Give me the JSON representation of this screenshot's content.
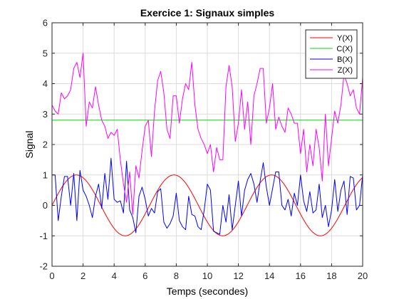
{
  "chart_data": {
    "type": "line",
    "title": "Exercice 1: Signaux simples",
    "xlabel": "Temps (secondes)",
    "ylabel": "Signal",
    "xlim": [
      0,
      20
    ],
    "ylim": [
      -2,
      6
    ],
    "xticks": [
      "0",
      "2",
      "4",
      "6",
      "8",
      "10",
      "12",
      "14",
      "16",
      "18",
      "20"
    ],
    "yticks": [
      "-2",
      "-1",
      "0",
      "1",
      "2",
      "3",
      "4",
      "5",
      "6"
    ],
    "grid": true,
    "legend_position": "top-right",
    "series": [
      {
        "name": "Y(X)",
        "color": "#ff0000",
        "function": "sine",
        "amplitude": 1,
        "angular_frequency": 1,
        "x_range": [
          0,
          20
        ]
      },
      {
        "name": "C(X)",
        "color": "#00dd00",
        "x": [
          0,
          20
        ],
        "y": [
          2.8,
          2.8
        ]
      },
      {
        "name": "B(X)",
        "color": "#0000ff",
        "x": [
          0,
          0.2,
          0.4,
          0.6,
          0.8,
          1.0,
          1.2,
          1.4,
          1.6,
          1.8,
          2.0,
          2.2,
          2.4,
          2.6,
          2.8,
          3.0,
          3.2,
          3.4,
          3.6,
          3.8,
          4.0,
          4.2,
          4.4,
          4.6,
          4.8,
          5.0,
          5.2,
          5.4,
          5.6,
          5.8,
          6.0,
          6.2,
          6.4,
          6.6,
          6.8,
          7.0,
          7.2,
          7.4,
          7.6,
          7.8,
          8.0,
          8.2,
          8.4,
          8.6,
          8.8,
          9.0,
          9.2,
          9.4,
          9.6,
          9.8,
          10.0,
          10.2,
          10.4,
          10.6,
          10.8,
          11.0,
          11.2,
          11.4,
          11.6,
          11.8,
          12.0,
          12.2,
          12.4,
          12.6,
          12.8,
          13.0,
          13.2,
          13.4,
          13.6,
          13.8,
          14.0,
          14.2,
          14.4,
          14.6,
          14.8,
          15.0,
          15.2,
          15.4,
          15.6,
          15.8,
          16.0,
          16.2,
          16.4,
          16.6,
          16.8,
          17.0,
          17.2,
          17.4,
          17.6,
          17.8,
          18.0,
          18.2,
          18.4,
          18.6,
          18.8,
          19.0,
          19.2,
          19.4,
          19.6,
          19.8,
          20.0
        ],
        "y": [
          1.0,
          1.0,
          -0.5,
          0.3,
          0.95,
          0.95,
          0.0,
          1.05,
          -0.5,
          1.15,
          0.5,
          0.3,
          0.0,
          -0.4,
          0.3,
          0.7,
          -0.1,
          1.05,
          0.2,
          1.55,
          0.2,
          0.1,
          0.15,
          -0.25,
          1.45,
          -0.15,
          -0.4,
          -0.9,
          0.3,
          0.6,
          0.2,
          -0.35,
          -0.1,
          -0.25,
          0.45,
          0.55,
          -0.55,
          -0.75,
          -0.6,
          -0.35,
          0.4,
          -0.5,
          -0.7,
          -0.8,
          0.3,
          -0.3,
          -0.35,
          -0.7,
          -0.8,
          -0.15,
          0.7,
          0.5,
          -0.85,
          -0.9,
          -0.95,
          0.0,
          -0.55,
          0.35,
          -0.8,
          0.0,
          0.8,
          -0.35,
          0.5,
          0.85,
          1.05,
          0.7,
          0.1,
          0.8,
          1.4,
          0.6,
          0.0,
          0.55,
          1.1,
          1.1,
          0.0,
          -0.15,
          0.2,
          -0.35,
          0.4,
          0.0,
          1.0,
          0.15,
          -0.2,
          0.45,
          -0.25,
          -0.15,
          0.7,
          -0.4,
          0.0,
          -0.7,
          -0.15,
          0.85,
          -0.2,
          0.5,
          0.8,
          -0.3,
          0.95,
          0.9,
          -0.15,
          0.0,
          1.0
        ]
      },
      {
        "name": "Z(X)",
        "color": "#ff00ff",
        "x": [
          0,
          0.2,
          0.4,
          0.6,
          0.8,
          1.0,
          1.2,
          1.4,
          1.6,
          1.8,
          2.0,
          2.2,
          2.4,
          2.6,
          2.8,
          3.0,
          3.2,
          3.4,
          3.6,
          3.8,
          4.0,
          4.2,
          4.4,
          4.6,
          4.8,
          5.0,
          5.2,
          5.4,
          5.6,
          5.8,
          6.0,
          6.2,
          6.4,
          6.6,
          6.8,
          7.0,
          7.2,
          7.4,
          7.6,
          7.8,
          8.0,
          8.2,
          8.4,
          8.6,
          8.8,
          9.0,
          9.2,
          9.4,
          9.6,
          9.8,
          10.0,
          10.2,
          10.4,
          10.6,
          10.8,
          11.0,
          11.2,
          11.4,
          11.6,
          11.8,
          12.0,
          12.2,
          12.4,
          12.6,
          12.8,
          13.0,
          13.2,
          13.4,
          13.6,
          13.8,
          14.0,
          14.2,
          14.4,
          14.6,
          14.8,
          15.0,
          15.2,
          15.4,
          15.6,
          15.8,
          16.0,
          16.2,
          16.4,
          16.6,
          16.8,
          17.0,
          17.2,
          17.4,
          17.6,
          17.8,
          18.0,
          18.2,
          18.4,
          18.6,
          18.8,
          19.0,
          19.2,
          19.4,
          19.6,
          19.8,
          20.0
        ],
        "y": [
          3.3,
          3.1,
          3.0,
          3.7,
          3.5,
          3.6,
          3.8,
          4.5,
          4.7,
          4.2,
          5.0,
          2.6,
          3.4,
          3.2,
          3.9,
          3.3,
          2.8,
          2.6,
          2.2,
          2.4,
          2.3,
          2.5,
          1.5,
          0.7,
          0.1,
          1.1,
          -0.3,
          1.3,
          0.9,
          1.8,
          2.6,
          2.8,
          1.6,
          3.1,
          4.1,
          4.4,
          3.7,
          2.5,
          2.2,
          3.6,
          3.6,
          2.7,
          3.5,
          4.0,
          3.8,
          4.7,
          3.3,
          2.5,
          2.2,
          2.0,
          1.7,
          2.0,
          1.1,
          1.9,
          1.5,
          1.5,
          3.9,
          4.6,
          3.9,
          2.1,
          2.7,
          3.8,
          2.5,
          3.4,
          2.0,
          3.6,
          4.0,
          4.5,
          4.5,
          2.7,
          3.2,
          4.0,
          2.5,
          2.9,
          2.6,
          2.4,
          3.2,
          3.0,
          2.7,
          2.7,
          1.7,
          2.5,
          1.1,
          2.0,
          1.3,
          2.5,
          1.9,
          0.8,
          3.0,
          1.3,
          2.2,
          3.1,
          2.7,
          3.3,
          4.3,
          4.0,
          3.6,
          3.8,
          3.2,
          3.0,
          4.2
        ]
      }
    ]
  }
}
